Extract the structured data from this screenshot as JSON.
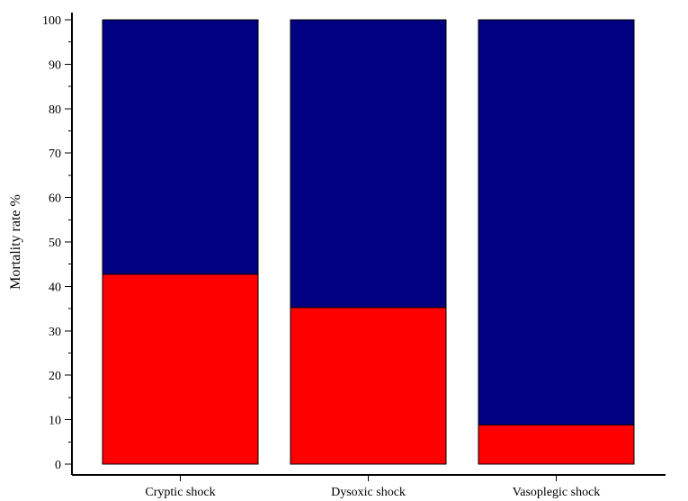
{
  "chart_data": {
    "type": "bar",
    "stacked": true,
    "categories": [
      "Cryptic shock",
      "Dysoxic shock",
      "Vasoplegic shock"
    ],
    "series": [
      {
        "values": [
          42.7,
          35.2,
          8.8
        ],
        "color": "#ff0000"
      },
      {
        "values": [
          57.3,
          64.8,
          91.2
        ],
        "color": "#000080"
      }
    ],
    "title": "",
    "xlabel": "",
    "ylabel": "Mortality rate %",
    "ylim": [
      0,
      100
    ],
    "yticks": [
      0,
      10,
      20,
      30,
      40,
      50,
      60,
      70,
      80,
      90,
      100
    ],
    "grid": false,
    "legend": "none"
  }
}
